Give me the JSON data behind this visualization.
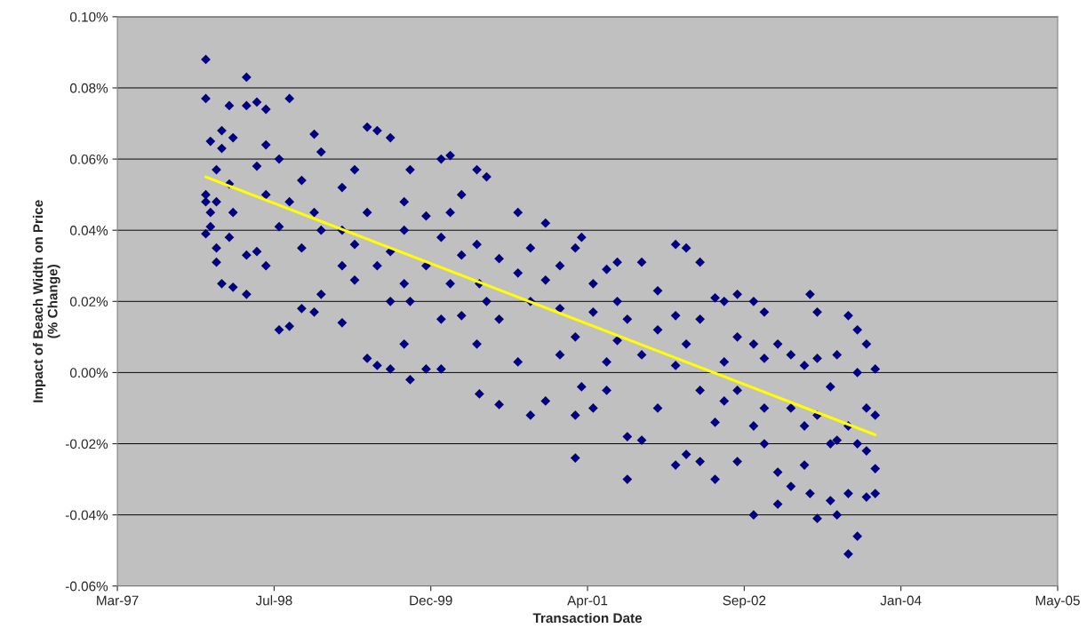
{
  "chart_data": {
    "type": "scatter",
    "xlabel": "Transaction Date",
    "ylabel": "Impact of Beach Width on Price\n(% Change)",
    "xlim": [
      "1997-03-11",
      "2005-05-28"
    ],
    "xticks": [
      {
        "value": "1997-03-11",
        "label": "Mar-97"
      },
      {
        "value": "1998-07-24",
        "label": "Jul-98"
      },
      {
        "value": "1999-12-06",
        "label": "Dec-99"
      },
      {
        "value": "2001-04-19",
        "label": "Apr-01"
      },
      {
        "value": "2002-09-01",
        "label": "Sep-02"
      },
      {
        "value": "2004-01-14",
        "label": "Jan-04"
      },
      {
        "value": "2005-05-28",
        "label": "May-05"
      }
    ],
    "ylim": [
      -0.06,
      0.1
    ],
    "yticks": [
      {
        "value": -0.06,
        "label": "-0.06%"
      },
      {
        "value": -0.04,
        "label": "-0.04%"
      },
      {
        "value": -0.02,
        "label": "-0.02%"
      },
      {
        "value": 0,
        "label": "0.00%"
      },
      {
        "value": 0.02,
        "label": "0.02%"
      },
      {
        "value": 0.04,
        "label": "0.04%"
      },
      {
        "value": 0.06,
        "label": "0.06%"
      },
      {
        "value": 0.08,
        "label": "0.08%"
      },
      {
        "value": 0.1,
        "label": "0.10%"
      }
    ],
    "grid": "y",
    "series": [
      {
        "color": "#000080",
        "marker": "diamond",
        "x": [
          "1997-12-18",
          "1997-12-18",
          "1997-12-18",
          "1997-12-18",
          "1997-12-18",
          "1998-01-02",
          "1998-01-02",
          "1998-01-02",
          "1998-01-21",
          "1998-01-21",
          "1998-01-21",
          "1998-01-21",
          "1998-02-07",
          "1998-02-07",
          "1998-02-07",
          "1998-03-03",
          "1998-03-03",
          "1998-03-03",
          "1998-03-15",
          "1998-03-15",
          "1998-03-15",
          "1998-04-27",
          "1998-04-27",
          "1998-04-27",
          "1998-04-27",
          "1998-05-30",
          "1998-05-30",
          "1998-05-30",
          "1998-06-28",
          "1998-06-28",
          "1998-06-28",
          "1998-06-28",
          "1998-08-09",
          "1998-08-09",
          "1998-08-09",
          "1998-09-11",
          "1998-09-11",
          "1998-09-11",
          "1998-10-20",
          "1998-10-20",
          "1998-10-20",
          "1998-11-29",
          "1998-11-29",
          "1998-11-29",
          "1998-12-21",
          "1998-12-21",
          "1998-12-21",
          "1999-02-26",
          "1999-02-26",
          "1999-02-26",
          "1999-02-26",
          "1999-04-07",
          "1999-04-07",
          "1999-04-07",
          "1999-05-17",
          "1999-05-17",
          "1999-05-17",
          "1999-06-18",
          "1999-06-18",
          "1999-06-18",
          "1999-07-30",
          "1999-07-30",
          "1999-07-30",
          "1999-07-30",
          "1999-09-12",
          "1999-09-12",
          "1999-09-12",
          "1999-09-12",
          "1999-10-01",
          "1999-10-01",
          "1999-10-01",
          "1999-11-21",
          "1999-11-21",
          "1999-11-21",
          "2000-01-08",
          "2000-01-08",
          "2000-01-08",
          "2000-01-08",
          "2000-02-06",
          "2000-02-06",
          "2000-02-06",
          "2000-03-13",
          "2000-03-13",
          "2000-03-13",
          "2000-05-01",
          "2000-05-01",
          "2000-05-01",
          "2000-05-09",
          "2000-05-09",
          "2000-06-01",
          "2000-06-01",
          "2000-07-11",
          "2000-07-11",
          "2000-07-11",
          "2000-09-09",
          "2000-09-09",
          "2000-09-09",
          "2000-10-19",
          "2000-10-19",
          "2000-10-19",
          "2000-12-06",
          "2000-12-06",
          "2000-12-06",
          "2001-01-21",
          "2001-01-21",
          "2001-01-21",
          "2001-03-11",
          "2001-03-11",
          "2001-03-11",
          "2001-03-11",
          "2001-03-31",
          "2001-03-31",
          "2001-05-07",
          "2001-05-07",
          "2001-05-07",
          "2001-06-19",
          "2001-06-19",
          "2001-06-19",
          "2001-07-23",
          "2001-07-23",
          "2001-07-23",
          "2001-08-24",
          "2001-08-24",
          "2001-08-24",
          "2001-10-09",
          "2001-10-09",
          "2001-10-09",
          "2001-11-29",
          "2001-11-29",
          "2001-11-29",
          "2002-01-25",
          "2002-01-25",
          "2002-01-25",
          "2002-01-25",
          "2002-02-28",
          "2002-02-28",
          "2002-02-28",
          "2002-04-13",
          "2002-04-13",
          "2002-04-13",
          "2002-04-13",
          "2002-05-31",
          "2002-05-31",
          "2002-05-31",
          "2002-06-29",
          "2002-06-29",
          "2002-06-29",
          "2002-08-10",
          "2002-08-10",
          "2002-08-10",
          "2002-08-10",
          "2002-10-01",
          "2002-10-01",
          "2002-10-01",
          "2002-10-01",
          "2002-11-04",
          "2002-11-04",
          "2002-11-04",
          "2002-11-04",
          "2002-12-17",
          "2002-12-17",
          "2002-12-17",
          "2003-01-28",
          "2003-01-28",
          "2003-01-28",
          "2003-03-12",
          "2003-03-12",
          "2003-03-12",
          "2003-03-30",
          "2003-03-30",
          "2003-04-22",
          "2003-04-22",
          "2003-04-22",
          "2003-04-22",
          "2003-06-03",
          "2003-06-03",
          "2003-06-03",
          "2003-06-24",
          "2003-06-24",
          "2003-06-24",
          "2003-07-30",
          "2003-07-30",
          "2003-07-30",
          "2003-07-30",
          "2003-08-28",
          "2003-08-28",
          "2003-08-28",
          "2003-08-28",
          "2003-09-26",
          "2003-09-26",
          "2003-09-26",
          "2003-09-26",
          "2003-10-24",
          "2003-10-24",
          "2003-10-24",
          "2003-10-24"
        ],
        "values": [
          0.088,
          0.077,
          0.05,
          0.039,
          0.048,
          0.065,
          0.045,
          0.041,
          0.057,
          0.035,
          0.031,
          0.048,
          0.068,
          0.025,
          0.063,
          0.075,
          0.038,
          0.053,
          0.024,
          0.066,
          0.045,
          0.083,
          0.075,
          0.033,
          0.022,
          0.076,
          0.058,
          0.034,
          0.074,
          0.064,
          0.05,
          0.03,
          0.012,
          0.06,
          0.041,
          0.077,
          0.013,
          0.048,
          0.054,
          0.018,
          0.035,
          0.067,
          0.017,
          0.045,
          0.062,
          0.022,
          0.04,
          0.014,
          0.052,
          0.04,
          0.03,
          0.057,
          0.026,
          0.036,
          0.069,
          0.004,
          0.045,
          0.068,
          0.002,
          0.03,
          0.066,
          0.001,
          0.034,
          0.02,
          0.04,
          0.008,
          0.048,
          0.025,
          0.057,
          -0.002,
          0.02,
          0.001,
          0.044,
          0.03,
          0.06,
          0.001,
          0.038,
          0.015,
          0.061,
          0.045,
          0.025,
          0.05,
          0.016,
          0.033,
          0.057,
          0.008,
          0.036,
          -0.006,
          0.025,
          0.055,
          0.02,
          -0.009,
          0.032,
          0.015,
          0.045,
          0.003,
          0.028,
          0.035,
          -0.012,
          0.02,
          0.042,
          -0.008,
          0.026,
          0.03,
          0.005,
          0.018,
          -0.024,
          0.035,
          0.01,
          -0.012,
          0.038,
          -0.004,
          0.017,
          -0.01,
          0.025,
          0.029,
          0.003,
          -0.005,
          0.031,
          0.009,
          0.02,
          -0.03,
          -0.018,
          0.015,
          0.031,
          -0.019,
          0.005,
          0.023,
          -0.01,
          0.012,
          0.036,
          -0.026,
          0.002,
          0.016,
          0.035,
          -0.023,
          0.008,
          0.031,
          -0.025,
          -0.005,
          0.015,
          -0.03,
          0.021,
          -0.014,
          0.02,
          -0.008,
          0.003,
          -0.025,
          0.022,
          -0.005,
          0.01,
          -0.04,
          0.02,
          -0.015,
          0.008,
          -0.02,
          0.017,
          -0.01,
          0.004,
          -0.037,
          0.008,
          -0.028,
          -0.032,
          -0.01,
          0.005,
          -0.026,
          0.002,
          -0.015,
          0.022,
          -0.034,
          -0.041,
          0.017,
          -0.012,
          0.004,
          -0.036,
          -0.004,
          -0.02,
          -0.04,
          -0.019,
          0.005,
          -0.051,
          0.016,
          -0.034,
          -0.015,
          -0.046,
          0.012,
          -0.02,
          0.0,
          -0.035,
          0.008,
          -0.022,
          -0.01,
          -0.034,
          -0.012,
          0.001,
          -0.027
        ]
      },
      {
        "type": "line",
        "color": "#ffff00",
        "x": [
          "1997-12-18",
          "2003-10-24"
        ],
        "values": [
          0.055,
          -0.0175
        ]
      }
    ]
  }
}
